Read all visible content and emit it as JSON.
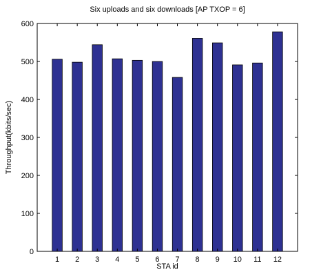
{
  "chart_data": {
    "type": "bar",
    "title": "Six uploads and six downloads [AP TXOP = 6]",
    "xlabel": "STA id",
    "ylabel": "Throughput(kbits/sec)",
    "categories": [
      "1",
      "2",
      "3",
      "4",
      "5",
      "6",
      "7",
      "8",
      "9",
      "10",
      "11",
      "12"
    ],
    "values": [
      506,
      498,
      544,
      507,
      503,
      500,
      458,
      561,
      549,
      491,
      496,
      578
    ],
    "ylim": [
      0,
      600
    ],
    "yticks": [
      0,
      100,
      200,
      300,
      400,
      500,
      600
    ],
    "grid": false,
    "legend": "none",
    "bar_color": "#2e3192",
    "bar_edge_color": "#000000"
  }
}
